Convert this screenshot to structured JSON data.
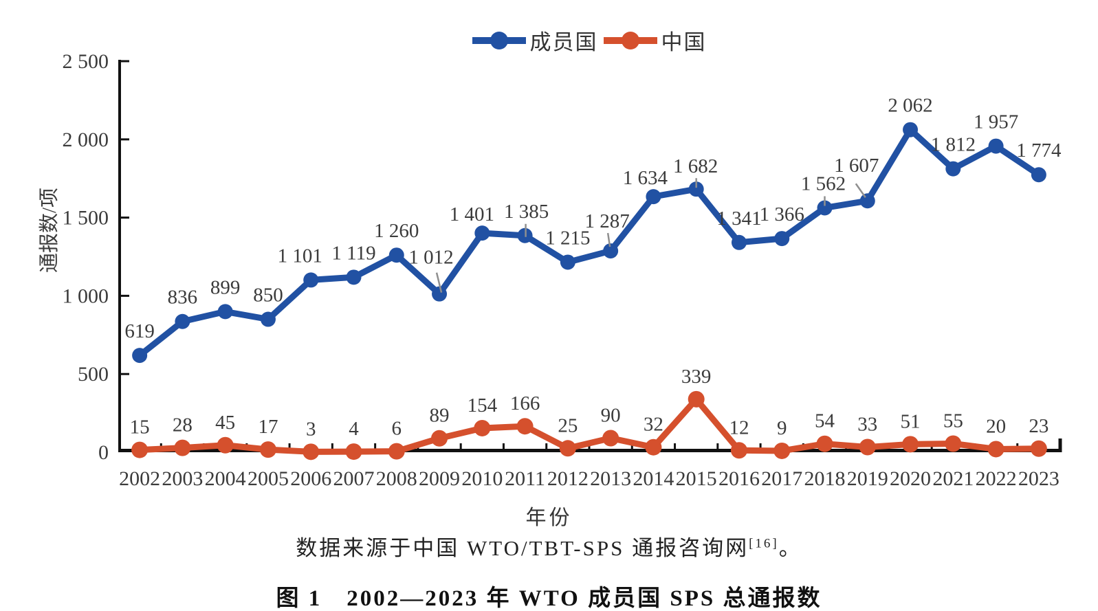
{
  "chart_data": {
    "type": "line",
    "title": "图 1　2002—2023 年 WTO 成员国 SPS 总通报数",
    "source_note": "数据来源于中国 WTO/TBT-SPS 通报咨询网",
    "source_ref": "[16]",
    "source_suffix": "。",
    "xlabel": "年份",
    "ylabel": "通报数/项",
    "ylim": [
      0,
      2500
    ],
    "yticks": [
      0,
      500,
      1000,
      1500,
      2000,
      2500
    ],
    "grid": false,
    "legend_position": "top-center",
    "number_format": "space-thousands",
    "categories": [
      "2002",
      "2003",
      "2004",
      "2005",
      "2006",
      "2007",
      "2008",
      "2009",
      "2010",
      "2011",
      "2012",
      "2013",
      "2014",
      "2015",
      "2016",
      "2017",
      "2018",
      "2019",
      "2020",
      "2021",
      "2022",
      "2023"
    ],
    "series": [
      {
        "name": "成员国",
        "color": "#2151a3",
        "values": [
          619,
          836,
          899,
          850,
          1101,
          1119,
          1260,
          1012,
          1401,
          1385,
          1215,
          1287,
          1634,
          1682,
          1341,
          1366,
          1562,
          1607,
          2062,
          1812,
          1957,
          1774
        ]
      },
      {
        "name": "中国",
        "color": "#d5502d",
        "values": [
          15,
          28,
          45,
          17,
          3,
          4,
          6,
          89,
          154,
          166,
          25,
          90,
          32,
          339,
          12,
          9,
          54,
          33,
          51,
          55,
          20,
          23
        ]
      }
    ]
  }
}
